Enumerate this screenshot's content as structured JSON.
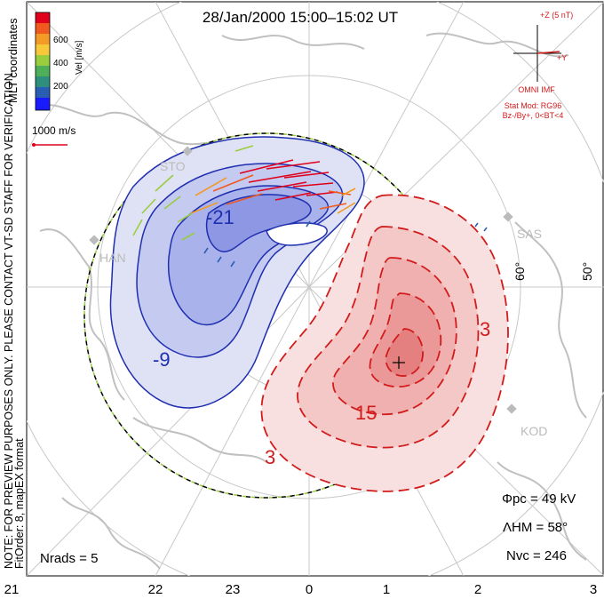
{
  "title": "28/Jan/2000 15:00–15:02 UT",
  "colorbar": {
    "label": "Vel [m/s]",
    "ticks": [
      "600",
      "400",
      "200"
    ],
    "colors": [
      "#e0001b",
      "#f15a1f",
      "#f49a27",
      "#f7c83a",
      "#9acd3e",
      "#4fae59",
      "#2f8f7e",
      "#2a5eb3",
      "#1a1aff"
    ]
  },
  "coords_label": "MLT coordinates",
  "watermark": "NOTE: FOR PREVIEW PURPOSES ONLY. PLEASE CONTACT VT-SD STAFF FOR VERIFICATION.",
  "fit_label": "FitOrder: 8, mapEX format",
  "reference_vector": "1000 m/s",
  "imf": {
    "z_label": "+Z (5 nT)",
    "y_label": "+Y",
    "source": "OMNI IMF",
    "model": "Stat Mod: RG96",
    "conditions": "Bz-/By+, 0<BT<4"
  },
  "stations": [
    "STO",
    "HAN",
    "SAS",
    "KOD"
  ],
  "latitude_labels": [
    "60°",
    "50°"
  ],
  "contour_labels": [
    "-21",
    "-9",
    "3",
    "15",
    "3"
  ],
  "stats": {
    "phi_pc": "Φpc = 49 kV",
    "lambda_hm": "ΛHM = 58°",
    "n_vc": "Nvc = 246",
    "n_rads": "Nrads = 5"
  },
  "mlt_labels": [
    "21",
    "22",
    "23",
    "0",
    "1",
    "2",
    "3"
  ],
  "contour_colors": {
    "negative": "#1f2fb0",
    "positive": "#d21b1b",
    "negative_fill": "#d6daf2",
    "positive_fill": "#f6d2d2"
  }
}
